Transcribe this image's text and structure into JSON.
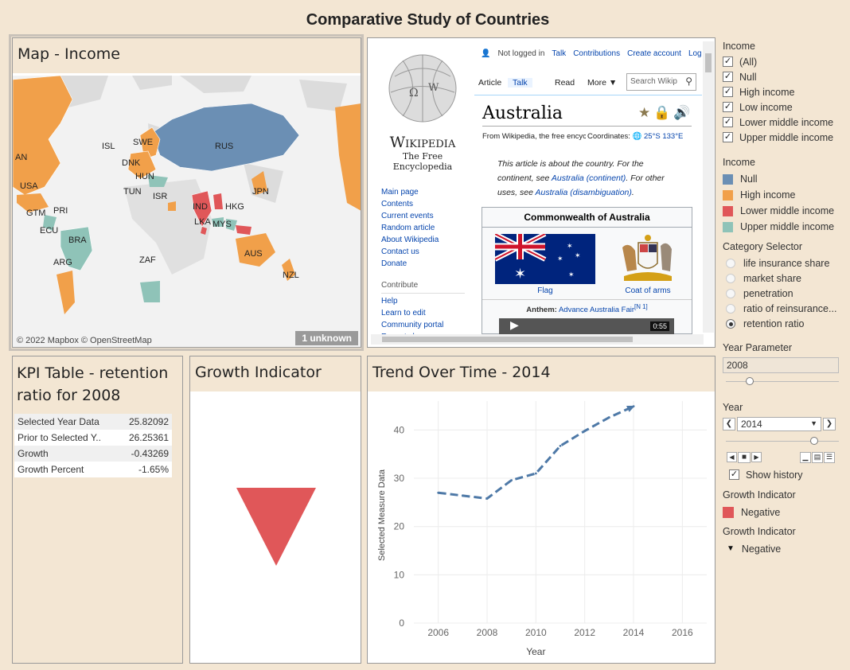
{
  "dashboard_title": "Comparative Study of Countries",
  "map": {
    "title": "Map - Income",
    "attribution": "© 2022 Mapbox © OpenStreetMap",
    "unknown": "1 unknown",
    "labels": [
      "AN",
      "USA",
      "GTM",
      "PRI",
      "ECU",
      "BRA",
      "ARG",
      "ISL",
      "SWE",
      "DNK",
      "HUN",
      "TUN",
      "ISR",
      "RUS",
      "IND",
      "LKA",
      "HKG",
      "MYS",
      "JPN",
      "ZAF",
      "AUS",
      "NZL"
    ]
  },
  "wiki": {
    "top_links": [
      "Not logged in",
      "Talk",
      "Contributions",
      "Create account",
      "Log in"
    ],
    "tabs": [
      "Article",
      "Talk",
      "Read",
      "More"
    ],
    "search_placeholder": "Search Wikip",
    "brand": "Wikipedia",
    "tagline": "The Free Encyclopedia",
    "heading": "Australia",
    "from_text": "From Wikipedia, the free encyclopedia",
    "coordinates_label": "Coordinates:",
    "coordinates": "25°S 133°E",
    "hatnote_1": "This article is about the country. For the",
    "hatnote_2": "continent, see",
    "hatnote_link1": "Australia (continent)",
    "hatnote_3": ". For other",
    "hatnote_4": "uses, see",
    "hatnote_link2": "Australia (disambiguation)",
    "hatnote_end": ".",
    "nav": [
      "Main page",
      "Contents",
      "Current events",
      "Random article",
      "About Wikipedia",
      "Contact us",
      "Donate"
    ],
    "contribute_head": "Contribute",
    "contribute": [
      "Help",
      "Learn to edit",
      "Community portal",
      "Recent changes"
    ],
    "infobox_title": "Commonwealth of Australia",
    "flag_caption": "Flag",
    "coa_caption": "Coat of arms",
    "anthem_label": "Anthem:",
    "anthem_value": "Advance Australia Fair",
    "anthem_note": "[N 1]",
    "video_time": "0:55"
  },
  "kpi": {
    "title_line1": "KPI Table - retention",
    "title_line2": "ratio for 2008",
    "rows": [
      {
        "label": "Selected Year Data",
        "value": "25.82092"
      },
      {
        "label": "Prior to Selected Y..",
        "value": "26.25361"
      },
      {
        "label": "Growth",
        "value": "-0.43269"
      },
      {
        "label": "Growth Percent",
        "value": "-1.65%"
      }
    ]
  },
  "growth": {
    "title": "Growth Indicator",
    "color": "#e05759"
  },
  "trend": {
    "title": "Trend Over Time - 2014"
  },
  "chart_data": {
    "type": "line",
    "title": "Trend Over Time - 2014",
    "xlabel": "Year",
    "ylabel": "Selected Measure Data",
    "x": [
      2006,
      2007,
      2008,
      2009,
      2010,
      2011,
      2012,
      2013,
      2014
    ],
    "series": [
      {
        "values": [
          27.0,
          26.4,
          25.8,
          29.6,
          31.0,
          36.7,
          39.8,
          42.6,
          44.9
        ]
      }
    ],
    "xlim": [
      2005,
      2017
    ],
    "ylim": [
      0,
      46
    ],
    "xticks": [
      2006,
      2008,
      2010,
      2012,
      2014,
      2016
    ],
    "yticks": [
      0,
      10,
      20,
      30,
      40
    ],
    "line_style": "dashed",
    "line_color": "#4e79a7",
    "grid": true
  },
  "sidebar": {
    "income_filter": {
      "title": "Income",
      "items": [
        "(All)",
        "Null",
        "High income",
        "Low income",
        "Lower middle income",
        "Upper middle income"
      ]
    },
    "income_legend": {
      "title": "Income",
      "items": [
        {
          "label": "Null",
          "color": "#6b8fb4"
        },
        {
          "label": "High income",
          "color": "#f1a04a"
        },
        {
          "label": "Lower middle income",
          "color": "#e05759"
        },
        {
          "label": "Upper middle income",
          "color": "#8fc3b8"
        }
      ]
    },
    "category": {
      "title": "Category Selector",
      "options": [
        "life insurance share",
        "market share",
        "penetration",
        "ratio of reinsurance...",
        "retention ratio"
      ],
      "selected": "retention ratio"
    },
    "year_param": {
      "title": "Year Parameter",
      "value": "2008"
    },
    "year": {
      "title": "Year",
      "value": "2014",
      "show_history": "Show history"
    },
    "growth_color_legend": {
      "title": "Growth Indicator",
      "label": "Negative",
      "color": "#e05759"
    },
    "growth_shape_legend": {
      "title": "Growth Indicator",
      "label": "Negative"
    }
  }
}
